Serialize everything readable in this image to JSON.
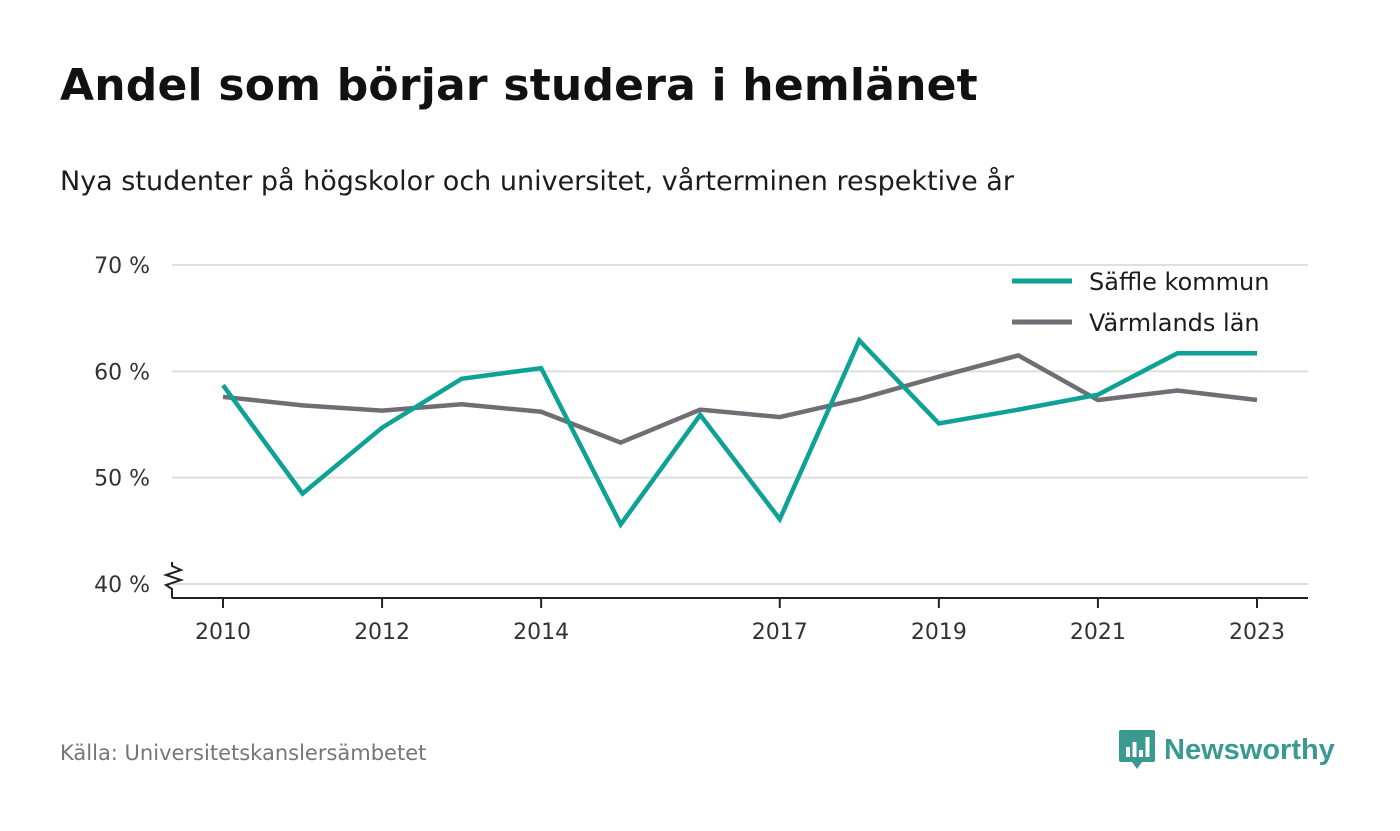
{
  "title": "Andel som börjar studera i hemlänet",
  "subtitle": "Nya studenter på högskolor och universitet, vårterminen respektive år",
  "source": "Källa: Universitetskanslersämbetet",
  "brand": {
    "name": "Newsworthy",
    "color": "#3a9a92",
    "icon": "bar-chart-speech-bubble-icon"
  },
  "chart_data": {
    "type": "line",
    "x": [
      2010,
      2011,
      2012,
      2013,
      2014,
      2015,
      2016,
      2017,
      2018,
      2019,
      2020,
      2021,
      2022,
      2023
    ],
    "x_tick_labels": [
      "2010",
      "2012",
      "2014",
      "2017",
      "2019",
      "2021",
      "2023"
    ],
    "y_ticks": [
      40,
      50,
      60,
      70
    ],
    "y_tick_labels": [
      "40 %",
      "50 %",
      "60 %",
      "70 %"
    ],
    "ylim": [
      40,
      70
    ],
    "y_axis_break": true,
    "grid": true,
    "legend_position": "top-right",
    "series": [
      {
        "name": "Säffle kommun",
        "color": "#0ea195",
        "values": [
          58.7,
          48.5,
          54.7,
          59.3,
          60.3,
          45.6,
          55.9,
          46.1,
          62.9,
          55.1,
          56.4,
          57.8,
          61.7,
          61.7
        ]
      },
      {
        "name": "Värmlands län",
        "color": "#706e74",
        "values": [
          57.6,
          56.8,
          56.3,
          56.9,
          56.2,
          53.3,
          56.4,
          55.7,
          57.4,
          59.5,
          61.5,
          57.3,
          58.2,
          57.3
        ]
      }
    ]
  }
}
